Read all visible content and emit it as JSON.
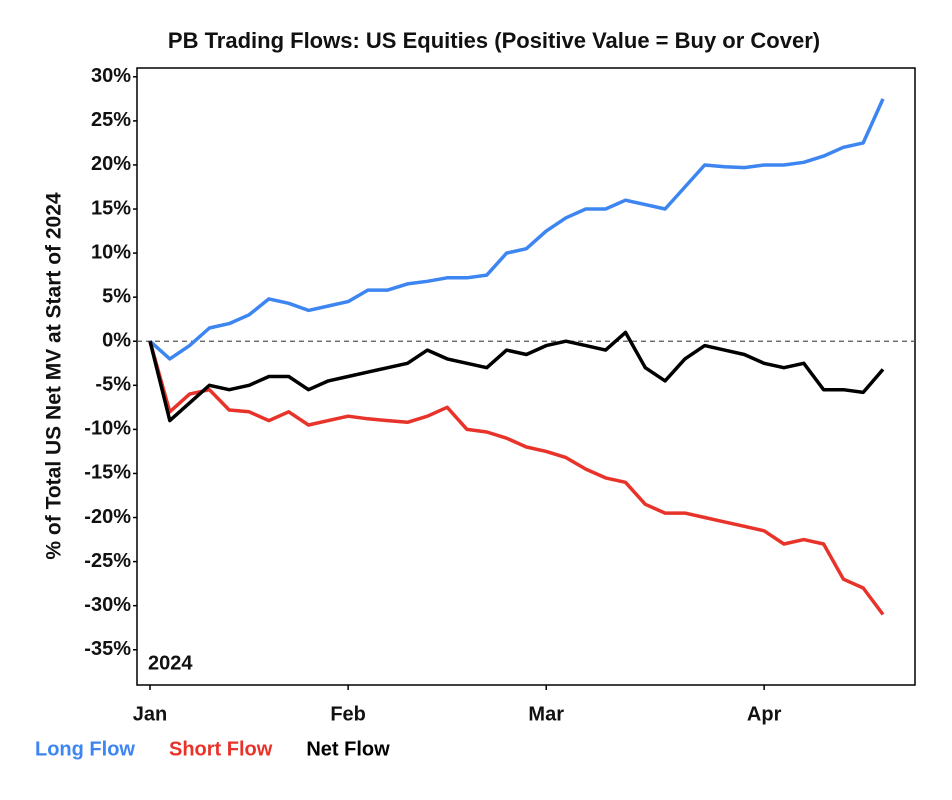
{
  "chart_data": {
    "type": "line",
    "title": "PB Trading Flows: US Equities (Positive Value = Buy or Cover)",
    "y_label": "% of Total US Net MV at Start of 2024",
    "annotation": "2024",
    "categories": [
      "Jan",
      null,
      null,
      null,
      null,
      null,
      null,
      null,
      null,
      null,
      "Feb",
      null,
      null,
      null,
      null,
      null,
      null,
      null,
      null,
      null,
      "Mar",
      null,
      null,
      null,
      null,
      null,
      null,
      null,
      null,
      null,
      null,
      "Apr",
      null,
      null,
      null,
      null,
      null,
      null
    ],
    "series": [
      {
        "name": "Long Flow",
        "color": "#3d85f0",
        "values": [
          0,
          -2,
          -0.5,
          1.5,
          2,
          3,
          4.8,
          4.3,
          3.5,
          4,
          4.5,
          5.8,
          5.8,
          6.5,
          6.8,
          7.2,
          7.2,
          7.5,
          10,
          10.5,
          12.5,
          14,
          15,
          15,
          16,
          15.5,
          15,
          17.5,
          20,
          19.8,
          19.7,
          20,
          20,
          20.3,
          21,
          22,
          22.5,
          27.5
        ]
      },
      {
        "name": "Short Flow",
        "color": "#e8332a",
        "values": [
          0,
          -8,
          -6,
          -5.5,
          -7.8,
          -8,
          -9,
          -8,
          -9.5,
          -9,
          -8.5,
          -8.8,
          -9,
          -9.2,
          -8.5,
          -7.5,
          -10,
          -10.3,
          -11,
          -12,
          -12.5,
          -13.2,
          -14.5,
          -15.5,
          -16,
          -18.5,
          -19.5,
          -19.5,
          -20,
          -20.5,
          -21,
          -21.5,
          -23,
          -22.5,
          -23,
          -27,
          -28,
          -31
        ]
      },
      {
        "name": "Net Flow",
        "color": "#000000",
        "values": [
          0,
          -9,
          -7,
          -5,
          -5.5,
          -5,
          -4,
          -4,
          -5.5,
          -4.5,
          -4,
          -3.5,
          -3,
          -2.5,
          -1,
          -2,
          -2.5,
          -3,
          -1,
          -1.5,
          -0.5,
          0,
          -0.5,
          -1,
          1,
          -3,
          -4.5,
          -2,
          -0.5,
          -1,
          -1.5,
          -2.5,
          -3,
          -2.5,
          -5.5,
          -5.5,
          -5.8,
          -3.2
        ]
      }
    ],
    "ylim": [
      -39,
      31
    ],
    "yticks": [
      {
        "value": -35,
        "label": "-35%"
      },
      {
        "value": -30,
        "label": "-30%"
      },
      {
        "value": -25,
        "label": "-25%"
      },
      {
        "value": -20,
        "label": "-20%"
      },
      {
        "value": -15,
        "label": "-15%"
      },
      {
        "value": -10,
        "label": "-10%"
      },
      {
        "value": -5,
        "label": "-5%"
      },
      {
        "value": 0,
        "label": "0%"
      },
      {
        "value": 5,
        "label": "5%"
      },
      {
        "value": 10,
        "label": "10%"
      },
      {
        "value": 15,
        "label": "15%"
      },
      {
        "value": 20,
        "label": "20%"
      },
      {
        "value": 25,
        "label": "25%"
      },
      {
        "value": 30,
        "label": "30%"
      }
    ]
  }
}
